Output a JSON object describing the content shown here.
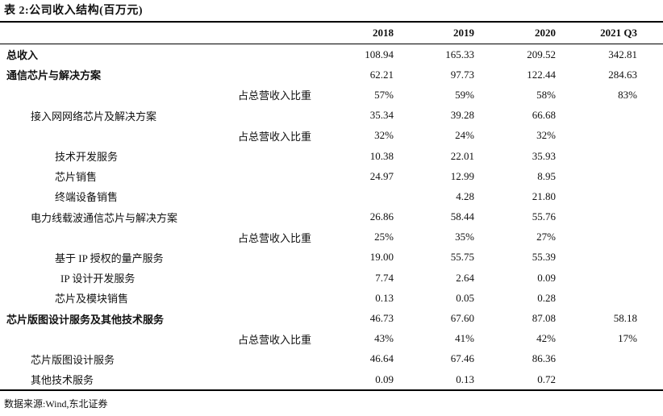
{
  "title": "表 2:公司收入结构(百万元)",
  "table": {
    "columns": [
      "2018",
      "2019",
      "2020",
      "2021 Q3"
    ],
    "rows": [
      {
        "label": "总收入",
        "style": "bold",
        "indent": 0,
        "values": [
          "108.94",
          "165.33",
          "209.52",
          "342.81"
        ]
      },
      {
        "label": "通信芯片与解决方案",
        "style": "bold",
        "indent": 0,
        "values": [
          "62.21",
          "97.73",
          "122.44",
          "284.63"
        ]
      },
      {
        "label": "占总营收入比重",
        "style": "share",
        "indent": 0,
        "values": [
          "57%",
          "59%",
          "58%",
          "83%"
        ]
      },
      {
        "label": "接入网网络芯片及解决方案",
        "style": "normal",
        "indent": 1,
        "values": [
          "35.34",
          "39.28",
          "66.68",
          ""
        ]
      },
      {
        "label": "占总营收入比重",
        "style": "share",
        "indent": 0,
        "values": [
          "32%",
          "24%",
          "32%",
          ""
        ]
      },
      {
        "label": "技术开发服务",
        "style": "normal",
        "indent": 2,
        "values": [
          "10.38",
          "22.01",
          "35.93",
          ""
        ]
      },
      {
        "label": "芯片销售",
        "style": "normal",
        "indent": 2,
        "values": [
          "24.97",
          "12.99",
          "8.95",
          ""
        ]
      },
      {
        "label": "终端设备销售",
        "style": "normal",
        "indent": 2,
        "values": [
          "",
          "4.28",
          "21.80",
          ""
        ]
      },
      {
        "label": "电力线载波通信芯片与解决方案",
        "style": "normal",
        "indent": 1,
        "values": [
          "26.86",
          "58.44",
          "55.76",
          ""
        ]
      },
      {
        "label": "占总营收入比重",
        "style": "share",
        "indent": 0,
        "values": [
          "25%",
          "35%",
          "27%",
          ""
        ]
      },
      {
        "label": "基于 IP 授权的量产服务",
        "style": "normal",
        "indent": 2,
        "values": [
          "19.00",
          "55.75",
          "55.39",
          ""
        ]
      },
      {
        "label": "IP 设计开发服务",
        "style": "normal",
        "indent": 3,
        "values": [
          "7.74",
          "2.64",
          "0.09",
          ""
        ]
      },
      {
        "label": "芯片及模块销售",
        "style": "normal",
        "indent": 2,
        "values": [
          "0.13",
          "0.05",
          "0.28",
          ""
        ]
      },
      {
        "label": "芯片版图设计服务及其他技术服务",
        "style": "bold",
        "indent": 0,
        "values": [
          "46.73",
          "67.60",
          "87.08",
          "58.18"
        ]
      },
      {
        "label": "占总营收入比重",
        "style": "share",
        "indent": 0,
        "values": [
          "43%",
          "41%",
          "42%",
          "17%"
        ]
      },
      {
        "label": "芯片版图设计服务",
        "style": "normal",
        "indent": 1,
        "values": [
          "46.64",
          "67.46",
          "86.36",
          ""
        ]
      },
      {
        "label": "其他技术服务",
        "style": "normal",
        "indent": 1,
        "values": [
          "0.09",
          "0.13",
          "0.72",
          ""
        ]
      }
    ]
  },
  "footer": {
    "source": "数据来源:Wind,东北证券"
  }
}
